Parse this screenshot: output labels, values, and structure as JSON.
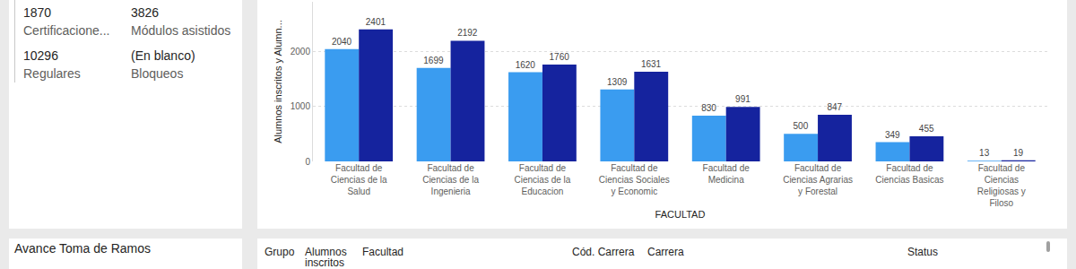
{
  "chart_data": {
    "type": "bar",
    "categories": [
      "Facultad de Ciencias de la Salud",
      "Facultad de Ciencias de la Ingenieria",
      "Facultad de Ciencias de la Educacion",
      "Facultad de Ciencias Sociales y Economic",
      "Facultad de Medicina",
      "Facultad de Ciencias Agrarias y Forestal",
      "Facultad de Ciencias Basicas",
      "Facultad de Ciencias Religiosas y Filoso"
    ],
    "series": [
      {
        "color": "#3a9cf0",
        "values": [
          2040,
          1699,
          1620,
          1309,
          830,
          500,
          349,
          13
        ]
      },
      {
        "color": "#15239e",
        "values": [
          2401,
          2192,
          1760,
          1631,
          991,
          847,
          455,
          19
        ]
      }
    ],
    "x_label": "FACULTAD",
    "y_label": "Alumnos inscritos y Alumn...",
    "ylim": [
      0,
      2900
    ],
    "yticks": [
      0,
      1000,
      2000
    ],
    "grid": true,
    "data_labels": true
  },
  "cards": [
    {
      "value": 1870,
      "label": "Certificacione..."
    },
    {
      "value": 3826,
      "label": "Módulos asistidos"
    },
    {
      "value": 10296,
      "label": "Regulares"
    },
    {
      "value": "(En blanco)",
      "label": "Bloqueos"
    }
  ],
  "section_title": "Avance Toma de Ramos",
  "table": {
    "header": [
      "Grupo",
      "Alumnos inscritos",
      "Facultad",
      "Cód. Carrera",
      "Carrera",
      "Status"
    ]
  }
}
